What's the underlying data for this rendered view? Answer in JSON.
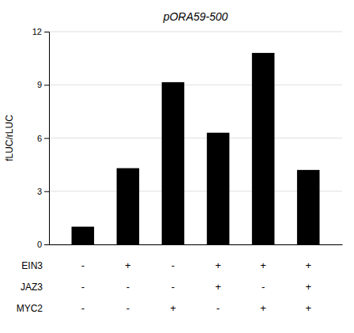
{
  "chart_data": {
    "type": "bar",
    "title": "pORA59-500",
    "ylabel": "fLUC/rLUC",
    "categories": [
      null,
      null,
      null,
      null,
      null,
      null
    ],
    "values": [
      1.0,
      4.3,
      9.15,
      6.3,
      10.8,
      4.2
    ],
    "color": "#000000",
    "ylim": [
      0,
      12
    ],
    "yticks": [
      0,
      3,
      6,
      9,
      12
    ],
    "grid": true,
    "tick_labels": "y",
    "label_rows": [
      "EIN3",
      "JAZ3",
      "MYC2"
    ],
    "label_signs": [
      [
        "-",
        "+",
        "-",
        "+",
        "+",
        "+"
      ],
      [
        "-",
        "-",
        "-",
        "+",
        "-",
        "+"
      ],
      [
        "-",
        "-",
        "+",
        "-",
        "+",
        "+"
      ]
    ]
  }
}
